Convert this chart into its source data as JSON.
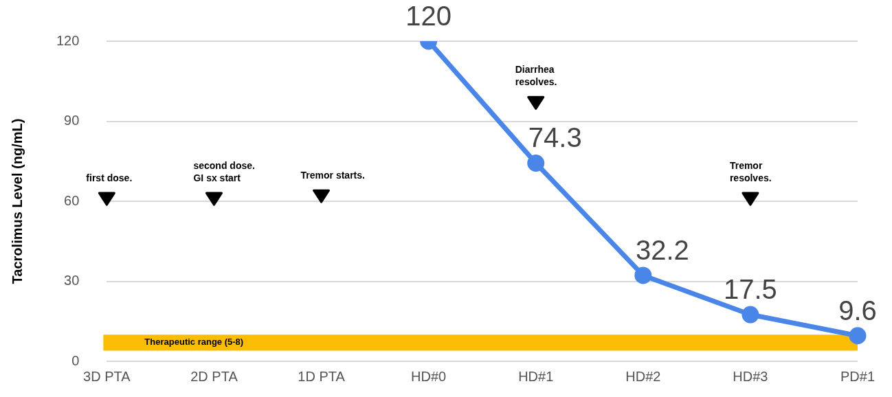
{
  "chart_data": {
    "type": "line",
    "ylabel": "Tacrolimus Level (ng/mL)",
    "categories": [
      "3D PTA",
      "2D PTA",
      "1D PTA",
      "HD#0",
      "HD#1",
      "HD#2",
      "HD#3",
      "PD#1"
    ],
    "series": [
      {
        "color": "#4a86e8",
        "values": [
          null,
          null,
          null,
          120,
          74.3,
          32.2,
          17.5,
          9.6
        ]
      }
    ],
    "ylim": [
      0,
      120
    ],
    "yticks": [
      0,
      30,
      60,
      90,
      120
    ],
    "grid": "y",
    "marker": "circle",
    "line_style": "solid",
    "data_labels": true,
    "bands": [
      {
        "axis": "y",
        "from": 4,
        "to": 10,
        "label": "Therapeutic range (5-8)",
        "color": "#fbbc04"
      }
    ],
    "annotations": [
      {
        "text": "first dose.",
        "x": "3D PTA",
        "y": 61
      },
      {
        "text": "second dose.\nGI sx start",
        "x": "2D PTA",
        "y": 61
      },
      {
        "text": "Tremor starts.",
        "x": "1D PTA",
        "y": 62
      },
      {
        "text": "Diarrhea\nresolves.",
        "x": "HD#1",
        "y": 97
      },
      {
        "text": "Tremor\nresolves.",
        "x": "HD#3",
        "y": 61
      }
    ]
  }
}
